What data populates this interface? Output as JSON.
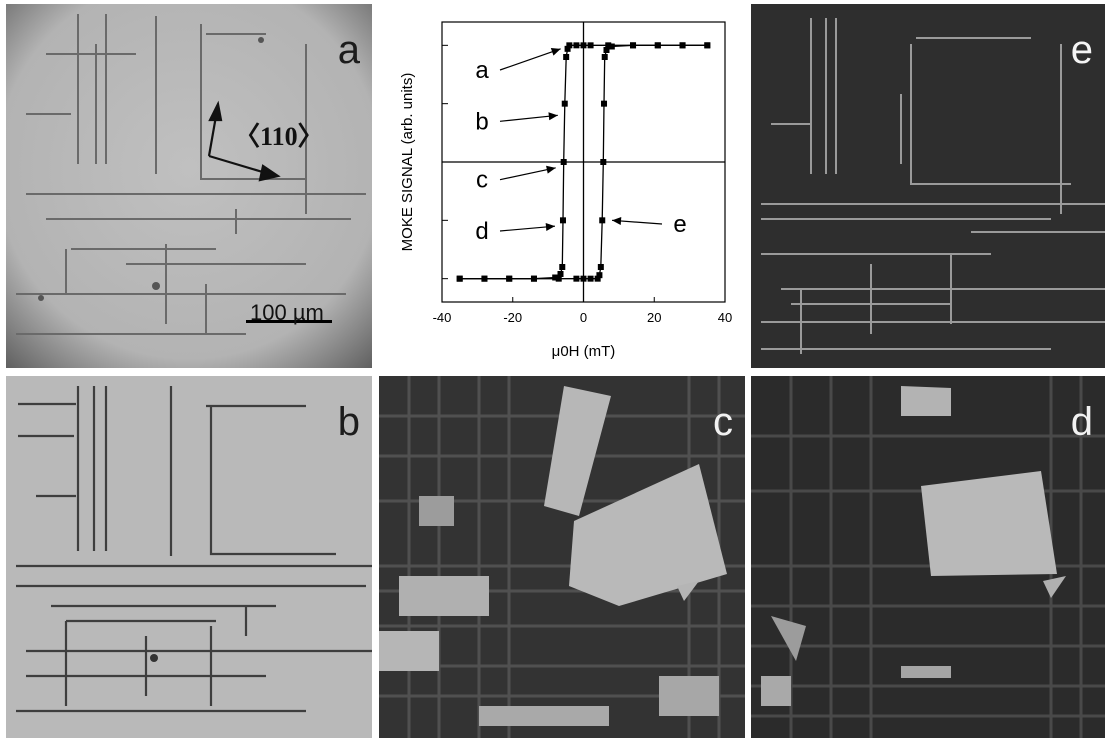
{
  "panels": {
    "a": {
      "letter": "a",
      "scale_bar_label": "100 µm",
      "axis_label": "〈110〉",
      "tone": "light"
    },
    "b": {
      "letter": "b",
      "tone": "light"
    },
    "c": {
      "letter": "c",
      "tone": "mixed"
    },
    "d": {
      "letter": "d",
      "tone": "mixed"
    },
    "e": {
      "letter": "e",
      "tone": "dark"
    }
  },
  "colors": {
    "light_domain": "#b9b9b9",
    "dark_domain": "#2e2e2e",
    "wall_gray": "#555555",
    "bright_wall": "#9a9a9a"
  },
  "chart_data": {
    "type": "line",
    "xlabel": "μ0H (mT)",
    "ylabel": "MOKE SIGNAL (arb. units)",
    "xlim": [
      -40,
      40
    ],
    "ylim": [
      -1.2,
      1.2
    ],
    "x_ticks": [
      -40,
      -20,
      0,
      20,
      40
    ],
    "y_ticks": [
      -1,
      -0.5,
      0,
      0.5,
      1
    ],
    "x_tick_labels": [
      "-40",
      "-20",
      "0",
      "20",
      "40"
    ],
    "grid": false,
    "series": [
      {
        "x": [
          -35,
          -28,
          -21,
          -14,
          -8,
          -6.5,
          -6.0,
          -5.8,
          -5.6,
          -5.3,
          -4.9,
          -4.5,
          -4.0,
          -2.0,
          0,
          2,
          7,
          14,
          21,
          28,
          35
        ],
        "y": [
          -1.0,
          -1.0,
          -1.0,
          -1.0,
          -0.99,
          -0.96,
          -0.9,
          -0.5,
          0.0,
          0.5,
          0.9,
          0.97,
          1.0,
          1.0,
          1.0,
          1.0,
          1.0,
          1.0,
          1.0,
          1.0,
          1.0
        ]
      },
      {
        "x": [
          35,
          28,
          21,
          14,
          8,
          6.5,
          6.0,
          5.8,
          5.6,
          5.3,
          4.9,
          4.5,
          4.0,
          2.0,
          0,
          -2,
          -7,
          -14,
          -21,
          -28,
          -35
        ],
        "y": [
          1.0,
          1.0,
          1.0,
          1.0,
          0.99,
          0.96,
          0.9,
          0.5,
          0.0,
          -0.5,
          -0.9,
          -0.97,
          -1.0,
          -1.0,
          -1.0,
          -1.0,
          -1.0,
          -1.0,
          -1.0,
          -1.0,
          -1.0
        ]
      }
    ],
    "annotations": [
      {
        "text": "a",
        "target": [
          -4.2,
          0.97
        ]
      },
      {
        "text": "b",
        "target": [
          -5.0,
          0.4
        ]
      },
      {
        "text": "c",
        "target": [
          -5.6,
          -0.05
        ]
      },
      {
        "text": "d",
        "target": [
          -5.8,
          -0.55
        ]
      },
      {
        "text": "e",
        "target": [
          5.8,
          -0.5
        ]
      }
    ]
  }
}
